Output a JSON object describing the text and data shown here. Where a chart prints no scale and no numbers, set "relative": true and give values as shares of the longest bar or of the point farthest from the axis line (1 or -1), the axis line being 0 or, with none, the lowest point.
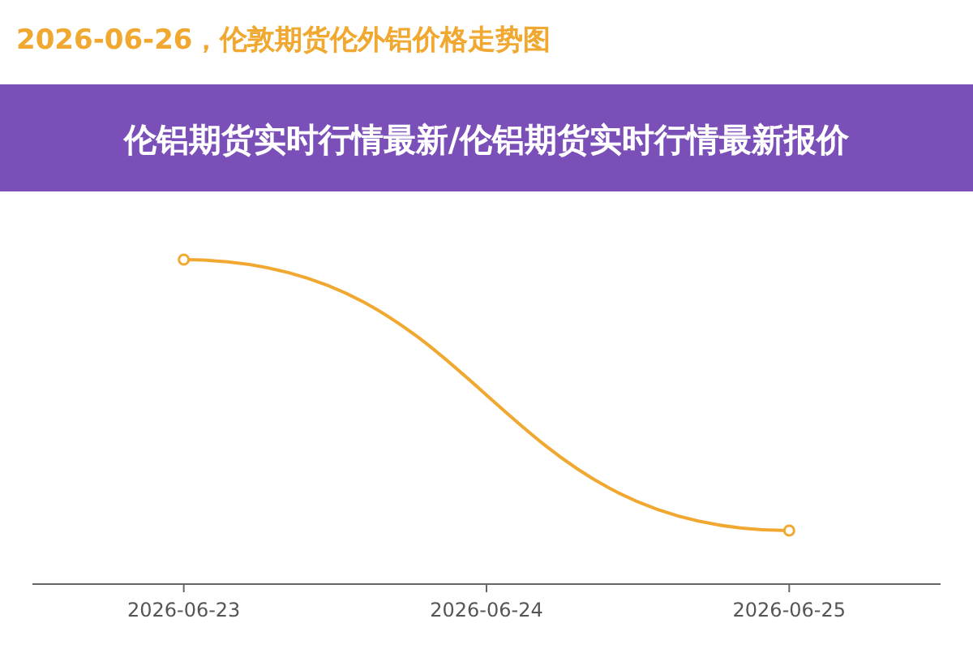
{
  "chart_data": {
    "type": "line",
    "title": "2026-06-26，伦敦期货伦外铝价格走势图",
    "subtitle": "伦铝期货实时行情最新/伦铝期货实时行情最新报价",
    "categories": [
      "2026-06-23",
      "2026-06-24",
      "2026-06-25"
    ],
    "relative": true,
    "marker": "circle",
    "series": [
      {
        "color": "#f0a830",
        "values": [
          1,
          null,
          0.165
        ]
      }
    ]
  }
}
